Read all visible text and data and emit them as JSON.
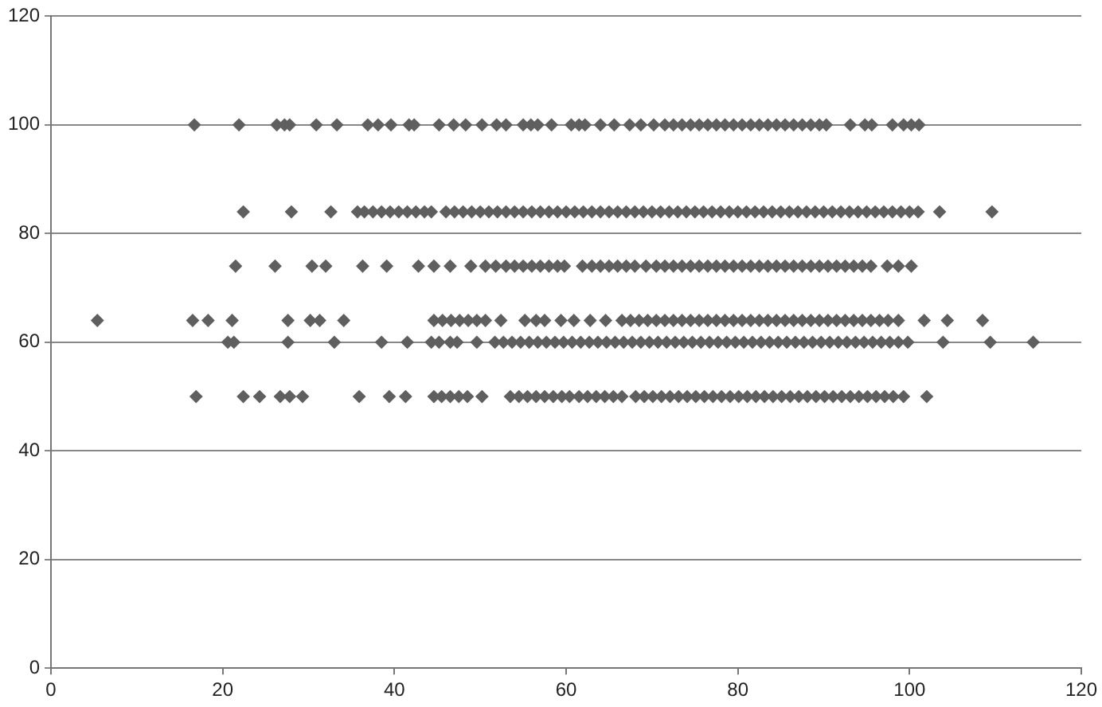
{
  "chart_data": {
    "type": "scatter",
    "marker": "diamond",
    "grid": "y",
    "legend": false,
    "xlim": [
      0,
      120
    ],
    "xticks": [
      0,
      20,
      40,
      60,
      80,
      100,
      120
    ],
    "ylim": [
      0,
      120
    ],
    "yticks": [
      0,
      20,
      40,
      60,
      80,
      100,
      120
    ],
    "series": [
      {
        "color": "#5f5f5f",
        "x": [
          16.7,
          21.9,
          26.3,
          27.2,
          27.8,
          30.9,
          33.3,
          36.9,
          38.1,
          39.6,
          41.7,
          42.3,
          45.2,
          46.9,
          48.3,
          50.2,
          51.9,
          53,
          55,
          55.9,
          56.7,
          58.3,
          60.6,
          61.5,
          62.2,
          64,
          65.6,
          67.4,
          68.7,
          70.2,
          71.5,
          72.5,
          73.5,
          74.5,
          75.5,
          76.5,
          77.5,
          78.5,
          79.5,
          80.5,
          81.5,
          82.5,
          83.5,
          84.5,
          85.5,
          86.5,
          87.5,
          88.5,
          89.5,
          90.3,
          93.1,
          94.8,
          95.6,
          98,
          99.3,
          100.2,
          101.1
        ],
        "values": [
          100,
          100,
          100,
          100,
          100,
          100,
          100,
          100,
          100,
          100,
          100,
          100,
          100,
          100,
          100,
          100,
          100,
          100,
          100,
          100,
          100,
          100,
          100,
          100,
          100,
          100,
          100,
          100,
          100,
          100,
          100,
          100,
          100,
          100,
          100,
          100,
          100,
          100,
          100,
          100,
          100,
          100,
          100,
          100,
          100,
          100,
          100,
          100,
          100,
          100,
          100,
          100,
          100,
          100,
          100,
          100,
          100
        ]
      },
      {
        "color": "#5f5f5f",
        "x": [
          22.4,
          28,
          32.6,
          35.7,
          36.5,
          37.5,
          38.5,
          39.5,
          40.5,
          41.5,
          42.5,
          43.5,
          44.3,
          46,
          47,
          48,
          49,
          50,
          51,
          52,
          53,
          54,
          55,
          56,
          57,
          58,
          59,
          60,
          61,
          62,
          63,
          64,
          65,
          66,
          67,
          68,
          69,
          70,
          71,
          72,
          73,
          74,
          75,
          76,
          77,
          78,
          79,
          80,
          81,
          82,
          83,
          84,
          85,
          86,
          87,
          88,
          89,
          90,
          91,
          92,
          93,
          94,
          95,
          96,
          97,
          98,
          99,
          100,
          101,
          103.5,
          109.6
        ],
        "values": [
          84,
          84,
          84,
          84,
          84,
          84,
          84,
          84,
          84,
          84,
          84,
          84,
          84,
          84,
          84,
          84,
          84,
          84,
          84,
          84,
          84,
          84,
          84,
          84,
          84,
          84,
          84,
          84,
          84,
          84,
          84,
          84,
          84,
          84,
          84,
          84,
          84,
          84,
          84,
          84,
          84,
          84,
          84,
          84,
          84,
          84,
          84,
          84,
          84,
          84,
          84,
          84,
          84,
          84,
          84,
          84,
          84,
          84,
          84,
          84,
          84,
          84,
          84,
          84,
          84,
          84,
          84,
          84,
          84,
          84,
          84
        ]
      },
      {
        "color": "#5f5f5f",
        "x": [
          21.5,
          26.1,
          30.4,
          32,
          36.3,
          39.1,
          42.8,
          44.6,
          46.5,
          48.9,
          50.6,
          51.8,
          53,
          54,
          55,
          56,
          57,
          58,
          59,
          59.8,
          61.9,
          63,
          64,
          65,
          66,
          67,
          68,
          69.3,
          70.5,
          71.5,
          72.5,
          73.5,
          74.5,
          75.5,
          76.5,
          77.5,
          78.5,
          79.5,
          80.5,
          81.5,
          82.5,
          83.5,
          84.5,
          85.5,
          86.5,
          87.5,
          88.5,
          89.5,
          90.5,
          91.5,
          92.5,
          93.5,
          94.5,
          95.5,
          97.4,
          98.7,
          100.2
        ],
        "values": [
          74,
          74,
          74,
          74,
          74,
          74,
          74,
          74,
          74,
          74,
          74,
          74,
          74,
          74,
          74,
          74,
          74,
          74,
          74,
          74,
          74,
          74,
          74,
          74,
          74,
          74,
          74,
          74,
          74,
          74,
          74,
          74,
          74,
          74,
          74,
          74,
          74,
          74,
          74,
          74,
          74,
          74,
          74,
          74,
          74,
          74,
          74,
          74,
          74,
          74,
          74,
          74,
          74,
          74,
          74,
          74,
          74
        ]
      },
      {
        "color": "#5f5f5f",
        "x": [
          5.4,
          16.5,
          18.3,
          21.1,
          27.6,
          30.2,
          31.3,
          34.1,
          44.6,
          45.6,
          46.6,
          47.6,
          48.6,
          49.6,
          50.6,
          52.4,
          55.2,
          56.5,
          57.5,
          59.4,
          60.9,
          62.8,
          64.6,
          66.5,
          67.5,
          68.5,
          69.5,
          70.5,
          71.5,
          72.5,
          73.5,
          74.5,
          75.5,
          76.5,
          77.5,
          78.5,
          79.5,
          80.5,
          81.5,
          82.5,
          83.5,
          84.5,
          85.5,
          86.5,
          87.5,
          88.5,
          89.5,
          90.5,
          91.5,
          92.5,
          93.5,
          94.5,
          95.5,
          96.5,
          97.5,
          98.7,
          101.7,
          104.4,
          108.5
        ],
        "values": [
          64,
          64,
          64,
          64,
          64,
          64,
          64,
          64,
          64,
          64,
          64,
          64,
          64,
          64,
          64,
          64,
          64,
          64,
          64,
          64,
          64,
          64,
          64,
          64,
          64,
          64,
          64,
          64,
          64,
          64,
          64,
          64,
          64,
          64,
          64,
          64,
          64,
          64,
          64,
          64,
          64,
          64,
          64,
          64,
          64,
          64,
          64,
          64,
          64,
          64,
          64,
          64,
          64,
          64,
          64,
          64,
          64,
          64,
          64
        ]
      },
      {
        "color": "#5f5f5f",
        "x": [
          20.6,
          21.3,
          27.6,
          33,
          38.5,
          41.5,
          44.3,
          45.2,
          46.5,
          47.3,
          49.6,
          51.7,
          52.7,
          53.7,
          54.7,
          55.7,
          56.7,
          57.7,
          58.7,
          59.7,
          60.7,
          61.7,
          62.7,
          63.7,
          64.7,
          65.7,
          66.7,
          67.7,
          68.7,
          69.7,
          70.7,
          71.7,
          72.7,
          73.7,
          74.7,
          75.7,
          76.7,
          77.7,
          78.7,
          79.7,
          80.7,
          81.7,
          82.7,
          83.7,
          84.7,
          85.7,
          86.7,
          87.7,
          88.7,
          89.7,
          90.7,
          91.7,
          92.7,
          93.7,
          94.7,
          95.7,
          96.7,
          97.7,
          98.7,
          99.8,
          103.9,
          109.4,
          114.4
        ],
        "values": [
          60,
          60,
          60,
          60,
          60,
          60,
          60,
          60,
          60,
          60,
          60,
          60,
          60,
          60,
          60,
          60,
          60,
          60,
          60,
          60,
          60,
          60,
          60,
          60,
          60,
          60,
          60,
          60,
          60,
          60,
          60,
          60,
          60,
          60,
          60,
          60,
          60,
          60,
          60,
          60,
          60,
          60,
          60,
          60,
          60,
          60,
          60,
          60,
          60,
          60,
          60,
          60,
          60,
          60,
          60,
          60,
          60,
          60,
          60,
          60,
          60,
          60,
          60
        ]
      },
      {
        "color": "#5f5f5f",
        "x": [
          16.9,
          22.4,
          24.3,
          26.7,
          27.8,
          29.3,
          35.9,
          39.4,
          41.3,
          44.6,
          45.5,
          46.5,
          47.5,
          48.5,
          50.2,
          53.5,
          54.5,
          55.5,
          56.5,
          57.5,
          58.5,
          59.5,
          60.4,
          61.5,
          62.5,
          63.5,
          64.5,
          65.5,
          66.5,
          68.1,
          69.1,
          70.1,
          71.1,
          72.1,
          73.1,
          74.1,
          75.1,
          76.1,
          77.1,
          78.1,
          79.1,
          80.1,
          81.1,
          82.1,
          83.1,
          84.1,
          85.1,
          86.1,
          87.1,
          88.1,
          89.1,
          90.1,
          91.1,
          92.1,
          93.1,
          94.1,
          95.1,
          96.1,
          97.1,
          98.1,
          99.3,
          102
        ],
        "values": [
          50,
          50,
          50,
          50,
          50,
          50,
          50,
          50,
          50,
          50,
          50,
          50,
          50,
          50,
          50,
          50,
          50,
          50,
          50,
          50,
          50,
          50,
          50,
          50,
          50,
          50,
          50,
          50,
          50,
          50,
          50,
          50,
          50,
          50,
          50,
          50,
          50,
          50,
          50,
          50,
          50,
          50,
          50,
          50,
          50,
          50,
          50,
          50,
          50,
          50,
          50,
          50,
          50,
          50,
          50,
          50,
          50,
          50,
          50,
          50,
          50,
          50
        ]
      }
    ]
  }
}
